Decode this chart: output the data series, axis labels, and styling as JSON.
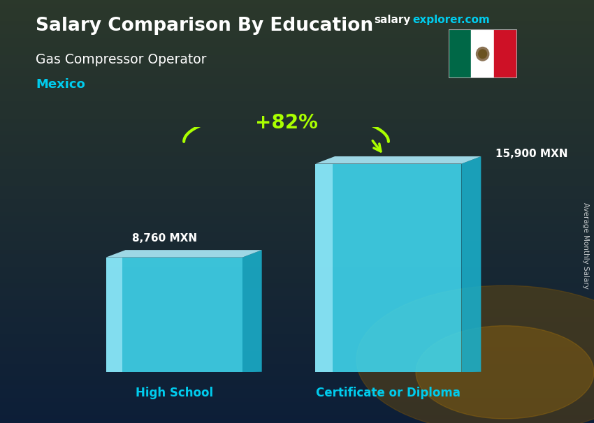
{
  "title": "Salary Comparison By Education",
  "subtitle_job": "Gas Compressor Operator",
  "subtitle_country": "Mexico",
  "site_salary_text": "salary",
  "site_explorer_text": "explorer.com",
  "categories": [
    "High School",
    "Certificate or Diploma"
  ],
  "values": [
    8760,
    15900
  ],
  "value_labels": [
    "8,760 MXN",
    "15,900 MXN"
  ],
  "pct_change": "+82%",
  "bar_color_front": "#40d8f0",
  "bar_color_light": "#90eefa",
  "bar_color_side": "#1ab0cc",
  "bar_color_top": "#b0f0ff",
  "bg_top": "#0d2444",
  "bg_bottom": "#1a3a2a",
  "title_color": "#ffffff",
  "subtitle_job_color": "#ffffff",
  "subtitle_country_color": "#00ccee",
  "label_color": "#ffffff",
  "category_color": "#00ccee",
  "pct_color": "#aaff00",
  "site_salary_color": "#ffffff",
  "site_explorer_color": "#00ccee",
  "rotated_label": "Average Monthly Salary",
  "flag_green": "#006847",
  "flag_white": "#FFFFFF",
  "flag_red": "#CE1126"
}
